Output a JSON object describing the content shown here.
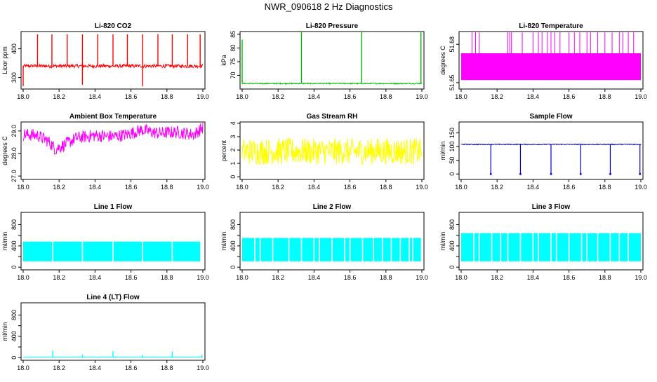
{
  "page_title": "NWR_090618  2 Hz Diagnostics",
  "chart_data": [
    {
      "type": "line",
      "title": "Li-820 CO2",
      "ylabel": "Licor ppm",
      "color": "#ff0000",
      "xlim": [
        18.0,
        19.0
      ],
      "ylim": [
        260,
        460
      ],
      "yticks": [
        300,
        400
      ],
      "ytick_labels": [
        "300",
        "400"
      ],
      "xticks": [
        18.0,
        18.2,
        18.4,
        18.6,
        18.8,
        19.0
      ],
      "xtick_labels": [
        "18.0",
        "18.2",
        "18.4",
        "18.6",
        "18.8",
        "19.0"
      ],
      "baseline": 340,
      "noise": 6,
      "spikes": [
        {
          "x": 18.0,
          "y": 270
        },
        {
          "x": 18.08,
          "y": 450
        },
        {
          "x": 18.16,
          "y": 450
        },
        {
          "x": 18.245,
          "y": 450
        },
        {
          "x": 18.33,
          "y": 450
        },
        {
          "x": 18.33,
          "y": 275
        },
        {
          "x": 18.415,
          "y": 450
        },
        {
          "x": 18.5,
          "y": 450
        },
        {
          "x": 18.58,
          "y": 450
        },
        {
          "x": 18.665,
          "y": 450
        },
        {
          "x": 18.665,
          "y": 270
        },
        {
          "x": 18.75,
          "y": 450
        },
        {
          "x": 18.83,
          "y": 450
        },
        {
          "x": 18.915,
          "y": 450
        },
        {
          "x": 18.985,
          "y": 450
        }
      ]
    },
    {
      "type": "line",
      "title": "Li-820 Pressure",
      "ylabel": "kPa",
      "color": "#00bb00",
      "xlim": [
        18.0,
        19.0
      ],
      "ylim": [
        65,
        86
      ],
      "yticks": [
        70,
        75,
        80,
        85
      ],
      "ytick_labels": [
        "70",
        "75",
        "80",
        "85"
      ],
      "xticks": [
        18.0,
        18.2,
        18.4,
        18.6,
        18.8,
        19.0
      ],
      "xtick_labels": [
        "18.0",
        "18.2",
        "18.4",
        "18.6",
        "18.8",
        "19.0"
      ],
      "baseline": 67,
      "noise": 0.2,
      "spikes": [
        {
          "x": 18.0,
          "y": 83
        },
        {
          "x": 18.33,
          "y": 86
        },
        {
          "x": 18.665,
          "y": 86
        },
        {
          "x": 18.995,
          "y": 86
        }
      ]
    },
    {
      "type": "area",
      "title": "Li-820 Temperature",
      "ylabel": "degrees C",
      "color": "#ff00ff",
      "xlim": [
        18.0,
        19.0
      ],
      "ylim": [
        51.645,
        51.69
      ],
      "yticks": [
        51.65,
        51.68
      ],
      "ytick_labels": [
        "51.65",
        "51.68"
      ],
      "xticks": [
        18.0,
        18.2,
        18.4,
        18.6,
        18.8,
        19.0
      ],
      "xtick_labels": [
        "18.0",
        "18.2",
        "18.4",
        "18.6",
        "18.8",
        "19.0"
      ],
      "band": [
        51.652,
        51.673
      ],
      "spike_top": 51.69,
      "spike_x": [
        18.06,
        18.08,
        18.1,
        18.26,
        18.27,
        18.28,
        18.34,
        18.4,
        18.43,
        18.45,
        18.48,
        18.5,
        18.52,
        18.55,
        18.6,
        18.63,
        18.66,
        18.7,
        18.72,
        18.76,
        18.8,
        18.84,
        18.88,
        18.9,
        18.93,
        18.96
      ]
    },
    {
      "type": "line",
      "title": "Ambient Box Temperature",
      "ylabel": "degrees C",
      "color": "#ff00ff",
      "xlim": [
        18.0,
        19.0
      ],
      "ylim": [
        26.85,
        29.4
      ],
      "yticks": [
        27.0,
        28.0,
        29.0
      ],
      "ytick_labels": [
        "27.0",
        "28.0",
        "29.0"
      ],
      "xticks": [
        18.0,
        18.2,
        18.4,
        18.6,
        18.8,
        19.0
      ],
      "xtick_labels": [
        "18.0",
        "18.2",
        "18.4",
        "18.6",
        "18.8",
        "19.0"
      ],
      "mid_x": [
        18.0,
        18.08,
        18.14,
        18.18,
        18.22,
        18.3,
        18.4,
        18.5,
        18.58,
        18.66,
        18.75,
        18.85,
        18.95,
        19.0
      ],
      "mid_y": [
        28.85,
        28.8,
        28.55,
        28.2,
        28.35,
        28.7,
        28.8,
        28.75,
        28.85,
        29.05,
        28.9,
        28.95,
        28.85,
        29.15
      ],
      "noise": 0.28
    },
    {
      "type": "line",
      "title": "Gas Stream RH",
      "ylabel": "percent",
      "color": "#ffff00",
      "xlim": [
        18.0,
        19.0
      ],
      "ylim": [
        -0.2,
        4.1
      ],
      "yticks": [
        0,
        1,
        2,
        3,
        4
      ],
      "ytick_labels": [
        "0",
        "1",
        "2",
        "3",
        "4"
      ],
      "xticks": [
        18.0,
        18.2,
        18.4,
        18.6,
        18.8,
        19.0
      ],
      "xtick_labels": [
        "18.0",
        "18.2",
        "18.4",
        "18.6",
        "18.8",
        "19.0"
      ],
      "baseline": 1.9,
      "noise": 1.0
    },
    {
      "type": "line",
      "title": "Sample Flow",
      "ylabel": "ml/min",
      "color": "#0000cc",
      "xlim": [
        18.0,
        19.0
      ],
      "ylim": [
        -20,
        190
      ],
      "yticks": [
        0,
        50,
        100,
        150
      ],
      "ytick_labels": [
        "0",
        "50",
        "100",
        "150"
      ],
      "xticks": [
        18.0,
        18.2,
        18.4,
        18.6,
        18.8,
        19.0
      ],
      "xtick_labels": [
        "18.0",
        "18.2",
        "18.4",
        "18.6",
        "18.8",
        "19.0"
      ],
      "baseline": 108,
      "noise": 1.5,
      "dips": [
        {
          "x": 18.165,
          "y": 0
        },
        {
          "x": 18.33,
          "y": 0
        },
        {
          "x": 18.5,
          "y": 0
        },
        {
          "x": 18.665,
          "y": 0
        },
        {
          "x": 18.83,
          "y": 0
        },
        {
          "x": 18.995,
          "y": 0
        }
      ]
    },
    {
      "type": "area",
      "title": "Line 1 Flow",
      "ylabel": "ml/min",
      "color": "#00ffff",
      "xlim": [
        18.0,
        19.0
      ],
      "ylim": [
        -50,
        1030
      ],
      "yticks": [
        0,
        200,
        400,
        600,
        800
      ],
      "ytick_labels": [
        "0",
        "400",
        "800"
      ],
      "xticks": [
        18.0,
        18.2,
        18.4,
        18.6,
        18.8,
        19.0
      ],
      "xtick_labels": [
        "18.0",
        "18.2",
        "18.4",
        "18.6",
        "18.8",
        "19.0"
      ],
      "band": [
        110,
        480
      ],
      "x_range": [
        18.0,
        18.985
      ],
      "gaps": [
        18.165,
        18.33,
        18.5,
        18.665,
        18.83
      ]
    },
    {
      "type": "area",
      "title": "Line 2 Flow",
      "ylabel": "ml/min",
      "color": "#00ffff",
      "xlim": [
        18.0,
        19.0
      ],
      "ylim": [
        -50,
        1030
      ],
      "yticks": [
        0,
        200,
        400,
        600,
        800
      ],
      "ytick_labels": [
        "0",
        "400",
        "800"
      ],
      "xticks": [
        18.0,
        18.2,
        18.4,
        18.6,
        18.8,
        19.0
      ],
      "xtick_labels": [
        "18.0",
        "18.2",
        "18.4",
        "18.6",
        "18.8",
        "19.0"
      ],
      "band": [
        110,
        550
      ],
      "x_range": [
        18.0,
        18.995
      ],
      "gaps": [
        18.07,
        18.1,
        18.17,
        18.26,
        18.33,
        18.4,
        18.43,
        18.5,
        18.57,
        18.6,
        18.67,
        18.73,
        18.78,
        18.83,
        18.88,
        18.93,
        18.95
      ]
    },
    {
      "type": "area",
      "title": "Line 3 Flow",
      "ylabel": "ml/min",
      "color": "#00ffff",
      "xlim": [
        18.0,
        19.0
      ],
      "ylim": [
        -50,
        1030
      ],
      "yticks": [
        0,
        200,
        400,
        600,
        800
      ],
      "ytick_labels": [
        "0",
        "400",
        "800"
      ],
      "xticks": [
        18.0,
        18.2,
        18.4,
        18.6,
        18.8,
        19.0
      ],
      "xtick_labels": [
        "18.0",
        "18.2",
        "18.4",
        "18.6",
        "18.8",
        "19.0"
      ],
      "band": [
        110,
        640
      ],
      "x_range": [
        18.0,
        19.0
      ],
      "gaps": [
        18.07,
        18.1,
        18.17,
        18.22,
        18.26,
        18.33,
        18.4,
        18.43,
        18.5,
        18.53,
        18.6,
        18.67,
        18.7,
        18.76,
        18.83,
        18.88,
        18.93
      ]
    },
    {
      "type": "line",
      "title": "Line 4 (LT) Flow",
      "ylabel": "ml/min",
      "color": "#00ffff",
      "xlim": [
        18.0,
        19.0
      ],
      "ylim": [
        -50,
        1030
      ],
      "yticks": [
        0,
        200,
        400,
        600,
        800
      ],
      "ytick_labels": [
        "0",
        "400",
        "800"
      ],
      "xticks": [
        18.0,
        18.2,
        18.4,
        18.6,
        18.8,
        19.0
      ],
      "xtick_labels": [
        "18.0",
        "18.2",
        "18.4",
        "18.6",
        "18.8",
        "19.0"
      ],
      "baseline": 8,
      "noise": 3,
      "spikes": [
        {
          "x": 18.165,
          "y": 130
        },
        {
          "x": 18.33,
          "y": 60
        },
        {
          "x": 18.5,
          "y": 120
        },
        {
          "x": 18.665,
          "y": 50
        },
        {
          "x": 18.83,
          "y": 110
        },
        {
          "x": 18.995,
          "y": 50
        }
      ]
    }
  ]
}
